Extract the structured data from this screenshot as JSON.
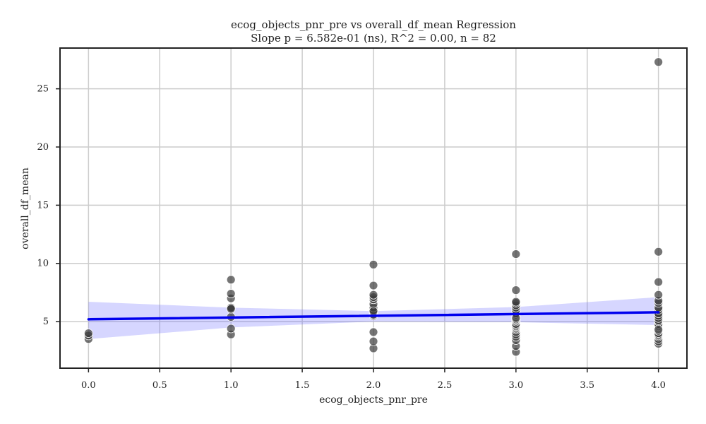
{
  "chart_data": {
    "type": "scatter",
    "title": "ecog_objects_pnr_pre vs overall_df_mean Regression",
    "subtitle": "Slope p = 6.582e-01 (ns), R^2 = 0.00, n = 82",
    "xlabel": "ecog_objects_pnr_pre",
    "ylabel": "overall_df_mean",
    "xlim": [
      -0.2,
      4.2
    ],
    "ylim": [
      1.0,
      28.5
    ],
    "x_ticks": [
      0.0,
      0.5,
      1.0,
      1.5,
      2.0,
      2.5,
      3.0,
      3.5,
      4.0
    ],
    "x_tick_labels": [
      "0.0",
      "0.5",
      "1.0",
      "1.5",
      "2.0",
      "2.5",
      "3.0",
      "3.5",
      "4.0"
    ],
    "y_ticks": [
      5,
      10,
      15,
      20,
      25
    ],
    "y_tick_labels": [
      "5",
      "10",
      "15",
      "20",
      "25"
    ],
    "grid": true,
    "legend": "none",
    "colors": {
      "points": "#3a3a3a",
      "point_edge": "#ffffff",
      "regression_line": "#0000ee",
      "confidence_band": "#5a5aff",
      "grid": "#cccccc",
      "axes": "#222222"
    },
    "points": [
      {
        "x": 0,
        "y": 3.5
      },
      {
        "x": 0,
        "y": 3.8
      },
      {
        "x": 0,
        "y": 4.0
      },
      {
        "x": 1,
        "y": 3.9
      },
      {
        "x": 1,
        "y": 4.4
      },
      {
        "x": 1,
        "y": 5.4
      },
      {
        "x": 1,
        "y": 6.1
      },
      {
        "x": 1,
        "y": 6.2
      },
      {
        "x": 1,
        "y": 7.0
      },
      {
        "x": 1,
        "y": 7.4
      },
      {
        "x": 1,
        "y": 8.6
      },
      {
        "x": 2,
        "y": 2.7
      },
      {
        "x": 2,
        "y": 3.3
      },
      {
        "x": 2,
        "y": 4.1
      },
      {
        "x": 2,
        "y": 5.5
      },
      {
        "x": 2,
        "y": 5.6
      },
      {
        "x": 2,
        "y": 5.8
      },
      {
        "x": 2,
        "y": 6.0
      },
      {
        "x": 2,
        "y": 6.2
      },
      {
        "x": 2,
        "y": 6.5
      },
      {
        "x": 2,
        "y": 6.9
      },
      {
        "x": 2,
        "y": 7.1
      },
      {
        "x": 2,
        "y": 7.3
      },
      {
        "x": 2,
        "y": 8.1
      },
      {
        "x": 2,
        "y": 9.9
      },
      {
        "x": 3,
        "y": 2.4
      },
      {
        "x": 3,
        "y": 2.9
      },
      {
        "x": 3,
        "y": 3.4
      },
      {
        "x": 3,
        "y": 3.7
      },
      {
        "x": 3,
        "y": 3.9
      },
      {
        "x": 3,
        "y": 4.1
      },
      {
        "x": 3,
        "y": 4.3
      },
      {
        "x": 3,
        "y": 4.4
      },
      {
        "x": 3,
        "y": 4.5
      },
      {
        "x": 3,
        "y": 4.6
      },
      {
        "x": 3,
        "y": 4.7
      },
      {
        "x": 3,
        "y": 4.8
      },
      {
        "x": 3,
        "y": 5.0
      },
      {
        "x": 3,
        "y": 5.1
      },
      {
        "x": 3,
        "y": 5.2
      },
      {
        "x": 3,
        "y": 5.4
      },
      {
        "x": 3,
        "y": 5.5
      },
      {
        "x": 3,
        "y": 5.6
      },
      {
        "x": 3,
        "y": 5.7
      },
      {
        "x": 3,
        "y": 5.9
      },
      {
        "x": 3,
        "y": 6.0
      },
      {
        "x": 3,
        "y": 6.2
      },
      {
        "x": 3,
        "y": 6.4
      },
      {
        "x": 3,
        "y": 6.6
      },
      {
        "x": 3,
        "y": 6.7
      },
      {
        "x": 3,
        "y": 7.7
      },
      {
        "x": 3,
        "y": 10.8
      },
      {
        "x": 4,
        "y": 3.1
      },
      {
        "x": 4,
        "y": 3.3
      },
      {
        "x": 4,
        "y": 3.5
      },
      {
        "x": 4,
        "y": 3.7
      },
      {
        "x": 4,
        "y": 3.8
      },
      {
        "x": 4,
        "y": 3.9
      },
      {
        "x": 4,
        "y": 4.0
      },
      {
        "x": 4,
        "y": 4.2
      },
      {
        "x": 4,
        "y": 4.4
      },
      {
        "x": 4,
        "y": 4.5
      },
      {
        "x": 4,
        "y": 4.6
      },
      {
        "x": 4,
        "y": 4.7
      },
      {
        "x": 4,
        "y": 4.8
      },
      {
        "x": 4,
        "y": 5.0
      },
      {
        "x": 4,
        "y": 5.1
      },
      {
        "x": 4,
        "y": 5.3
      },
      {
        "x": 4,
        "y": 5.5
      },
      {
        "x": 4,
        "y": 5.7
      },
      {
        "x": 4,
        "y": 6.0
      },
      {
        "x": 4,
        "y": 6.2
      },
      {
        "x": 4,
        "y": 6.6
      },
      {
        "x": 4,
        "y": 6.8
      },
      {
        "x": 4,
        "y": 7.3
      },
      {
        "x": 4,
        "y": 8.4
      },
      {
        "x": 4,
        "y": 11.0
      },
      {
        "x": 4,
        "y": 27.3
      },
      {
        "x": 2,
        "y": 5.9
      },
      {
        "x": 3,
        "y": 5.3
      },
      {
        "x": 4,
        "y": 4.3
      },
      {
        "x": 1,
        "y": 6.1
      }
    ],
    "regression_line": {
      "x": [
        0,
        4
      ],
      "y": [
        5.2,
        5.8
      ]
    },
    "confidence_band": {
      "x": [
        0,
        1,
        2,
        3,
        4
      ],
      "lower": [
        3.5,
        4.5,
        5.0,
        4.95,
        4.7
      ],
      "upper": [
        6.7,
        6.2,
        5.9,
        6.25,
        7.1
      ]
    }
  }
}
